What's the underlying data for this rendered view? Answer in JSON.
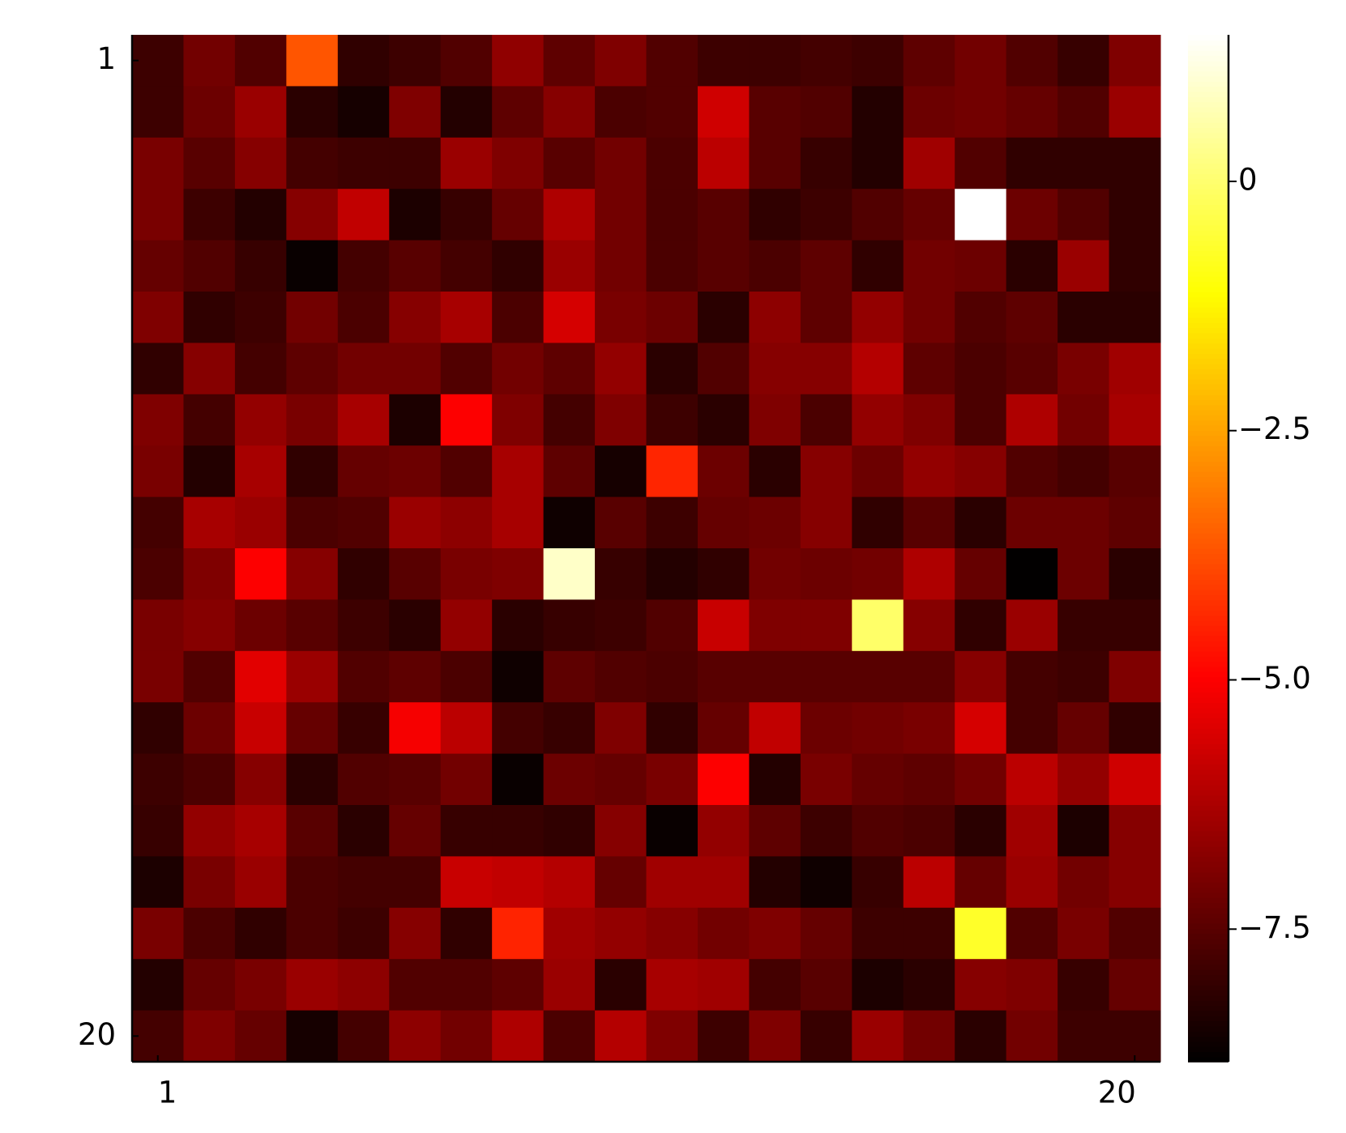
{
  "chart_data": {
    "type": "heatmap",
    "colormap": "hot",
    "xlim": [
      0.5,
      20.5
    ],
    "ylim": [
      20.5,
      0.5
    ],
    "xticks": [
      1,
      20
    ],
    "yticks": [
      1,
      20
    ],
    "clim": [
      -8.83,
      1.47
    ],
    "cticks": [
      0,
      {
        "value": -2.5,
        "label": "−2.5"
      },
      {
        "value": -5,
        "label": "−5.0"
      },
      {
        "value": -7.5,
        "label": "−7.5"
      }
    ],
    "z": [
      [
        -7.9,
        -7.1,
        -7.6,
        -3.68,
        -8.1,
        -7.9,
        -7.6,
        -6.65,
        -7.4,
        -6.9,
        -7.6,
        -7.9,
        -7.9,
        -7.8,
        -7.9,
        -7.4,
        -7.1,
        -7.6,
        -8.0,
        -6.9
      ],
      [
        -7.9,
        -7.2,
        -6.5,
        -8.2,
        -8.5,
        -6.9,
        -8.3,
        -7.4,
        -6.8,
        -7.7,
        -7.6,
        -5.7,
        -7.5,
        -7.6,
        -8.3,
        -7.2,
        -7.1,
        -7.3,
        -7.6,
        -6.5
      ],
      [
        -7.0,
        -7.5,
        -6.8,
        -7.8,
        -7.9,
        -7.9,
        -6.5,
        -6.9,
        -7.5,
        -7.1,
        -7.7,
        -6.0,
        -7.5,
        -8.0,
        -8.3,
        -6.4,
        -7.6,
        -8.1,
        -8.1,
        -8.1
      ],
      [
        -7.0,
        -7.9,
        -8.3,
        -6.8,
        -5.9,
        -8.4,
        -8.0,
        -7.3,
        -6.2,
        -7.1,
        -7.7,
        -7.5,
        -8.1,
        -7.9,
        -7.6,
        -7.3,
        1.47,
        -7.2,
        -7.6,
        -8.1
      ],
      [
        -7.3,
        -7.6,
        -8.0,
        -8.7,
        -7.8,
        -7.5,
        -7.8,
        -8.1,
        -6.5,
        -7.1,
        -7.7,
        -7.5,
        -7.7,
        -7.4,
        -8.1,
        -7.1,
        -7.2,
        -8.2,
        -6.5,
        -8.1
      ],
      [
        -6.9,
        -8.1,
        -7.9,
        -7.1,
        -7.7,
        -6.8,
        -6.3,
        -7.7,
        -5.6,
        -7.0,
        -7.2,
        -8.2,
        -6.7,
        -7.4,
        -6.6,
        -7.1,
        -7.6,
        -7.4,
        -8.2,
        -8.2
      ],
      [
        -8.1,
        -6.8,
        -7.8,
        -7.4,
        -7.1,
        -7.1,
        -7.6,
        -7.1,
        -7.4,
        -6.6,
        -8.2,
        -7.6,
        -6.8,
        -6.8,
        -6.1,
        -7.4,
        -7.7,
        -7.5,
        -7.0,
        -6.4
      ],
      [
        -6.9,
        -7.8,
        -6.6,
        -7.0,
        -6.3,
        -8.4,
        -5.0,
        -6.9,
        -7.8,
        -6.9,
        -7.9,
        -8.2,
        -6.9,
        -7.7,
        -6.6,
        -6.9,
        -7.7,
        -6.2,
        -7.1,
        -6.3
      ],
      [
        -7.0,
        -8.3,
        -6.3,
        -8.1,
        -7.3,
        -7.2,
        -7.6,
        -6.3,
        -7.4,
        -8.5,
        -4.4,
        -7.2,
        -8.2,
        -6.8,
        -7.2,
        -6.6,
        -6.8,
        -7.6,
        -7.8,
        -7.5
      ],
      [
        -7.8,
        -6.3,
        -6.5,
        -7.7,
        -7.6,
        -6.5,
        -6.7,
        -6.3,
        -8.6,
        -7.5,
        -7.9,
        -7.3,
        -7.2,
        -6.8,
        -8.1,
        -7.5,
        -8.2,
        -7.2,
        -7.2,
        -7.4
      ],
      [
        -7.7,
        -6.9,
        -5.0,
        -6.8,
        -8.1,
        -7.5,
        -7.0,
        -6.9,
        0.91,
        -8.0,
        -8.3,
        -8.1,
        -7.1,
        -7.2,
        -7.1,
        -6.2,
        -7.3,
        -8.8,
        -7.2,
        -8.2
      ],
      [
        -7.0,
        -6.8,
        -7.2,
        -7.5,
        -7.9,
        -8.2,
        -6.6,
        -8.2,
        -8.0,
        -7.9,
        -7.6,
        -5.8,
        -6.9,
        -6.9,
        -0.05,
        -6.8,
        -8.1,
        -6.5,
        -8.0,
        -8.0
      ],
      [
        -7.0,
        -7.6,
        -5.4,
        -6.5,
        -7.6,
        -7.4,
        -7.7,
        -8.6,
        -7.4,
        -7.6,
        -7.7,
        -7.5,
        -7.5,
        -7.5,
        -7.5,
        -7.5,
        -6.8,
        -7.8,
        -7.9,
        -6.9
      ],
      [
        -8.1,
        -7.2,
        -5.8,
        -7.3,
        -8.0,
        -5.1,
        -6.0,
        -7.8,
        -8.0,
        -6.9,
        -8.1,
        -7.3,
        -5.9,
        -7.2,
        -7.1,
        -7.0,
        -5.6,
        -7.8,
        -7.3,
        -8.1
      ],
      [
        -7.9,
        -7.7,
        -6.8,
        -8.2,
        -7.6,
        -7.5,
        -7.1,
        -8.7,
        -7.2,
        -7.3,
        -7.0,
        -5.0,
        -8.3,
        -7.0,
        -7.3,
        -7.4,
        -7.1,
        -6.0,
        -6.6,
        -5.7
      ],
      [
        -8.0,
        -6.6,
        -6.3,
        -7.5,
        -8.2,
        -7.3,
        -8.0,
        -8.0,
        -8.1,
        -6.8,
        -8.7,
        -6.6,
        -7.4,
        -7.9,
        -7.6,
        -7.7,
        -8.2,
        -6.4,
        -8.4,
        -6.8
      ],
      [
        -8.4,
        -7.0,
        -6.5,
        -7.7,
        -7.8,
        -7.8,
        -5.8,
        -5.9,
        -6.1,
        -7.3,
        -6.4,
        -6.4,
        -8.3,
        -8.6,
        -8.0,
        -6.0,
        -7.3,
        -6.5,
        -7.1,
        -6.8
      ],
      [
        -7.0,
        -7.7,
        -8.1,
        -7.7,
        -7.9,
        -6.8,
        -8.1,
        -4.44,
        -6.4,
        -6.6,
        -6.8,
        -7.1,
        -6.9,
        -7.3,
        -7.9,
        -7.9,
        -0.69,
        -7.6,
        -7.0,
        -7.6
      ],
      [
        -8.3,
        -7.3,
        -7.0,
        -6.5,
        -6.7,
        -7.6,
        -7.6,
        -7.4,
        -6.5,
        -8.2,
        -6.3,
        -6.4,
        -7.8,
        -7.5,
        -8.4,
        -8.2,
        -6.8,
        -6.9,
        -8.0,
        -7.3
      ],
      [
        -7.8,
        -6.9,
        -7.3,
        -8.5,
        -7.8,
        -6.7,
        -7.1,
        -6.2,
        -7.7,
        -6.1,
        -6.9,
        -7.9,
        -6.9,
        -8.0,
        -6.5,
        -7.1,
        -8.2,
        -7.1,
        -7.9,
        -7.9
      ]
    ]
  }
}
